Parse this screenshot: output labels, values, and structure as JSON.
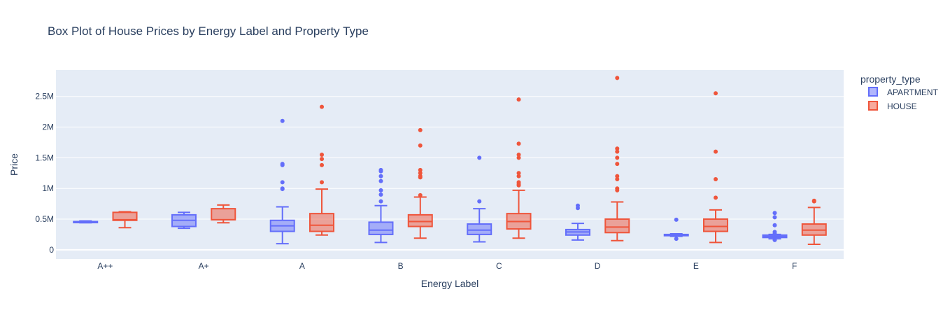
{
  "colors": {
    "apartment": "#636efa",
    "house": "#ef553b",
    "plot_bg": "#e5ecf6",
    "grid": "#ffffff",
    "text": "#2a3f5f"
  },
  "chart_data": {
    "type": "box",
    "title": "Box Plot of House Prices by Energy Label and Property Type",
    "xlabel": "Energy Label",
    "ylabel": "Price",
    "ylim": [
      -150000,
      2930000
    ],
    "grid": true,
    "legend_position": "right",
    "y_ticks": [
      {
        "value": 0,
        "label": "0"
      },
      {
        "value": 500000,
        "label": "0.5M"
      },
      {
        "value": 1000000,
        "label": "1M"
      },
      {
        "value": 1500000,
        "label": "1.5M"
      },
      {
        "value": 2000000,
        "label": "2M"
      },
      {
        "value": 2500000,
        "label": "2.5M"
      }
    ],
    "categories": [
      "A++",
      "A+",
      "A",
      "B",
      "C",
      "D",
      "E",
      "F"
    ],
    "legend": {
      "title": "property_type",
      "items": [
        "APARTMENT",
        "HOUSE"
      ]
    },
    "series": [
      {
        "name": "APARTMENT",
        "boxes": [
          {
            "cat": "A++",
            "min": 440000,
            "q1": 445000,
            "median": 450000,
            "q3": 460000,
            "max": 470000,
            "outliers": []
          },
          {
            "cat": "A+",
            "min": 350000,
            "q1": 380000,
            "median": 480000,
            "q3": 570000,
            "max": 610000,
            "outliers": []
          },
          {
            "cat": "A",
            "min": 100000,
            "q1": 300000,
            "median": 390000,
            "q3": 480000,
            "max": 700000,
            "outliers": [
              990000,
              1000000,
              1100000,
              1380000,
              1400000,
              2100000
            ]
          },
          {
            "cat": "B",
            "min": 120000,
            "q1": 250000,
            "median": 320000,
            "q3": 450000,
            "max": 720000,
            "outliers": [
              790000,
              900000,
              970000,
              1120000,
              1200000,
              1280000,
              1300000
            ]
          },
          {
            "cat": "C",
            "min": 130000,
            "q1": 250000,
            "median": 320000,
            "q3": 420000,
            "max": 670000,
            "outliers": [
              790000,
              1500000
            ]
          },
          {
            "cat": "D",
            "min": 160000,
            "q1": 240000,
            "median": 290000,
            "q3": 330000,
            "max": 430000,
            "outliers": [
              680000,
              720000
            ]
          },
          {
            "cat": "E",
            "min": 220000,
            "q1": 230000,
            "median": 240000,
            "q3": 250000,
            "max": 260000,
            "outliers": [
              180000,
              490000
            ]
          },
          {
            "cat": "F",
            "min": 180000,
            "q1": 200000,
            "median": 220000,
            "q3": 240000,
            "max": 250000,
            "outliers": [
              160000,
              170000,
              260000,
              290000,
              400000,
              530000,
              600000
            ]
          }
        ]
      },
      {
        "name": "HOUSE",
        "boxes": [
          {
            "cat": "A++",
            "min": 360000,
            "q1": 480000,
            "median": 490000,
            "q3": 610000,
            "max": 620000,
            "outliers": []
          },
          {
            "cat": "A+",
            "min": 440000,
            "q1": 490000,
            "median": 490000,
            "q3": 670000,
            "max": 730000,
            "outliers": []
          },
          {
            "cat": "A",
            "min": 240000,
            "q1": 300000,
            "median": 400000,
            "q3": 590000,
            "max": 990000,
            "outliers": [
              1100000,
              1380000,
              1480000,
              1550000,
              2330000
            ]
          },
          {
            "cat": "B",
            "min": 190000,
            "q1": 380000,
            "median": 460000,
            "q3": 570000,
            "max": 860000,
            "outliers": [
              890000,
              1180000,
              1200000,
              1250000,
              1300000,
              1700000,
              1950000
            ]
          },
          {
            "cat": "C",
            "min": 190000,
            "q1": 340000,
            "median": 460000,
            "q3": 590000,
            "max": 970000,
            "outliers": [
              1050000,
              1070000,
              1100000,
              1200000,
              1250000,
              1500000,
              1550000,
              1730000,
              2450000
            ]
          },
          {
            "cat": "D",
            "min": 150000,
            "q1": 280000,
            "median": 370000,
            "q3": 500000,
            "max": 780000,
            "outliers": [
              970000,
              1000000,
              1150000,
              1200000,
              1400000,
              1500000,
              1600000,
              1650000,
              2800000
            ]
          },
          {
            "cat": "E",
            "min": 120000,
            "q1": 300000,
            "median": 380000,
            "q3": 500000,
            "max": 650000,
            "outliers": [
              850000,
              1150000,
              1600000,
              2550000
            ]
          },
          {
            "cat": "F",
            "min": 90000,
            "q1": 240000,
            "median": 320000,
            "q3": 420000,
            "max": 690000,
            "outliers": [
              790000,
              800000
            ]
          }
        ]
      }
    ]
  }
}
